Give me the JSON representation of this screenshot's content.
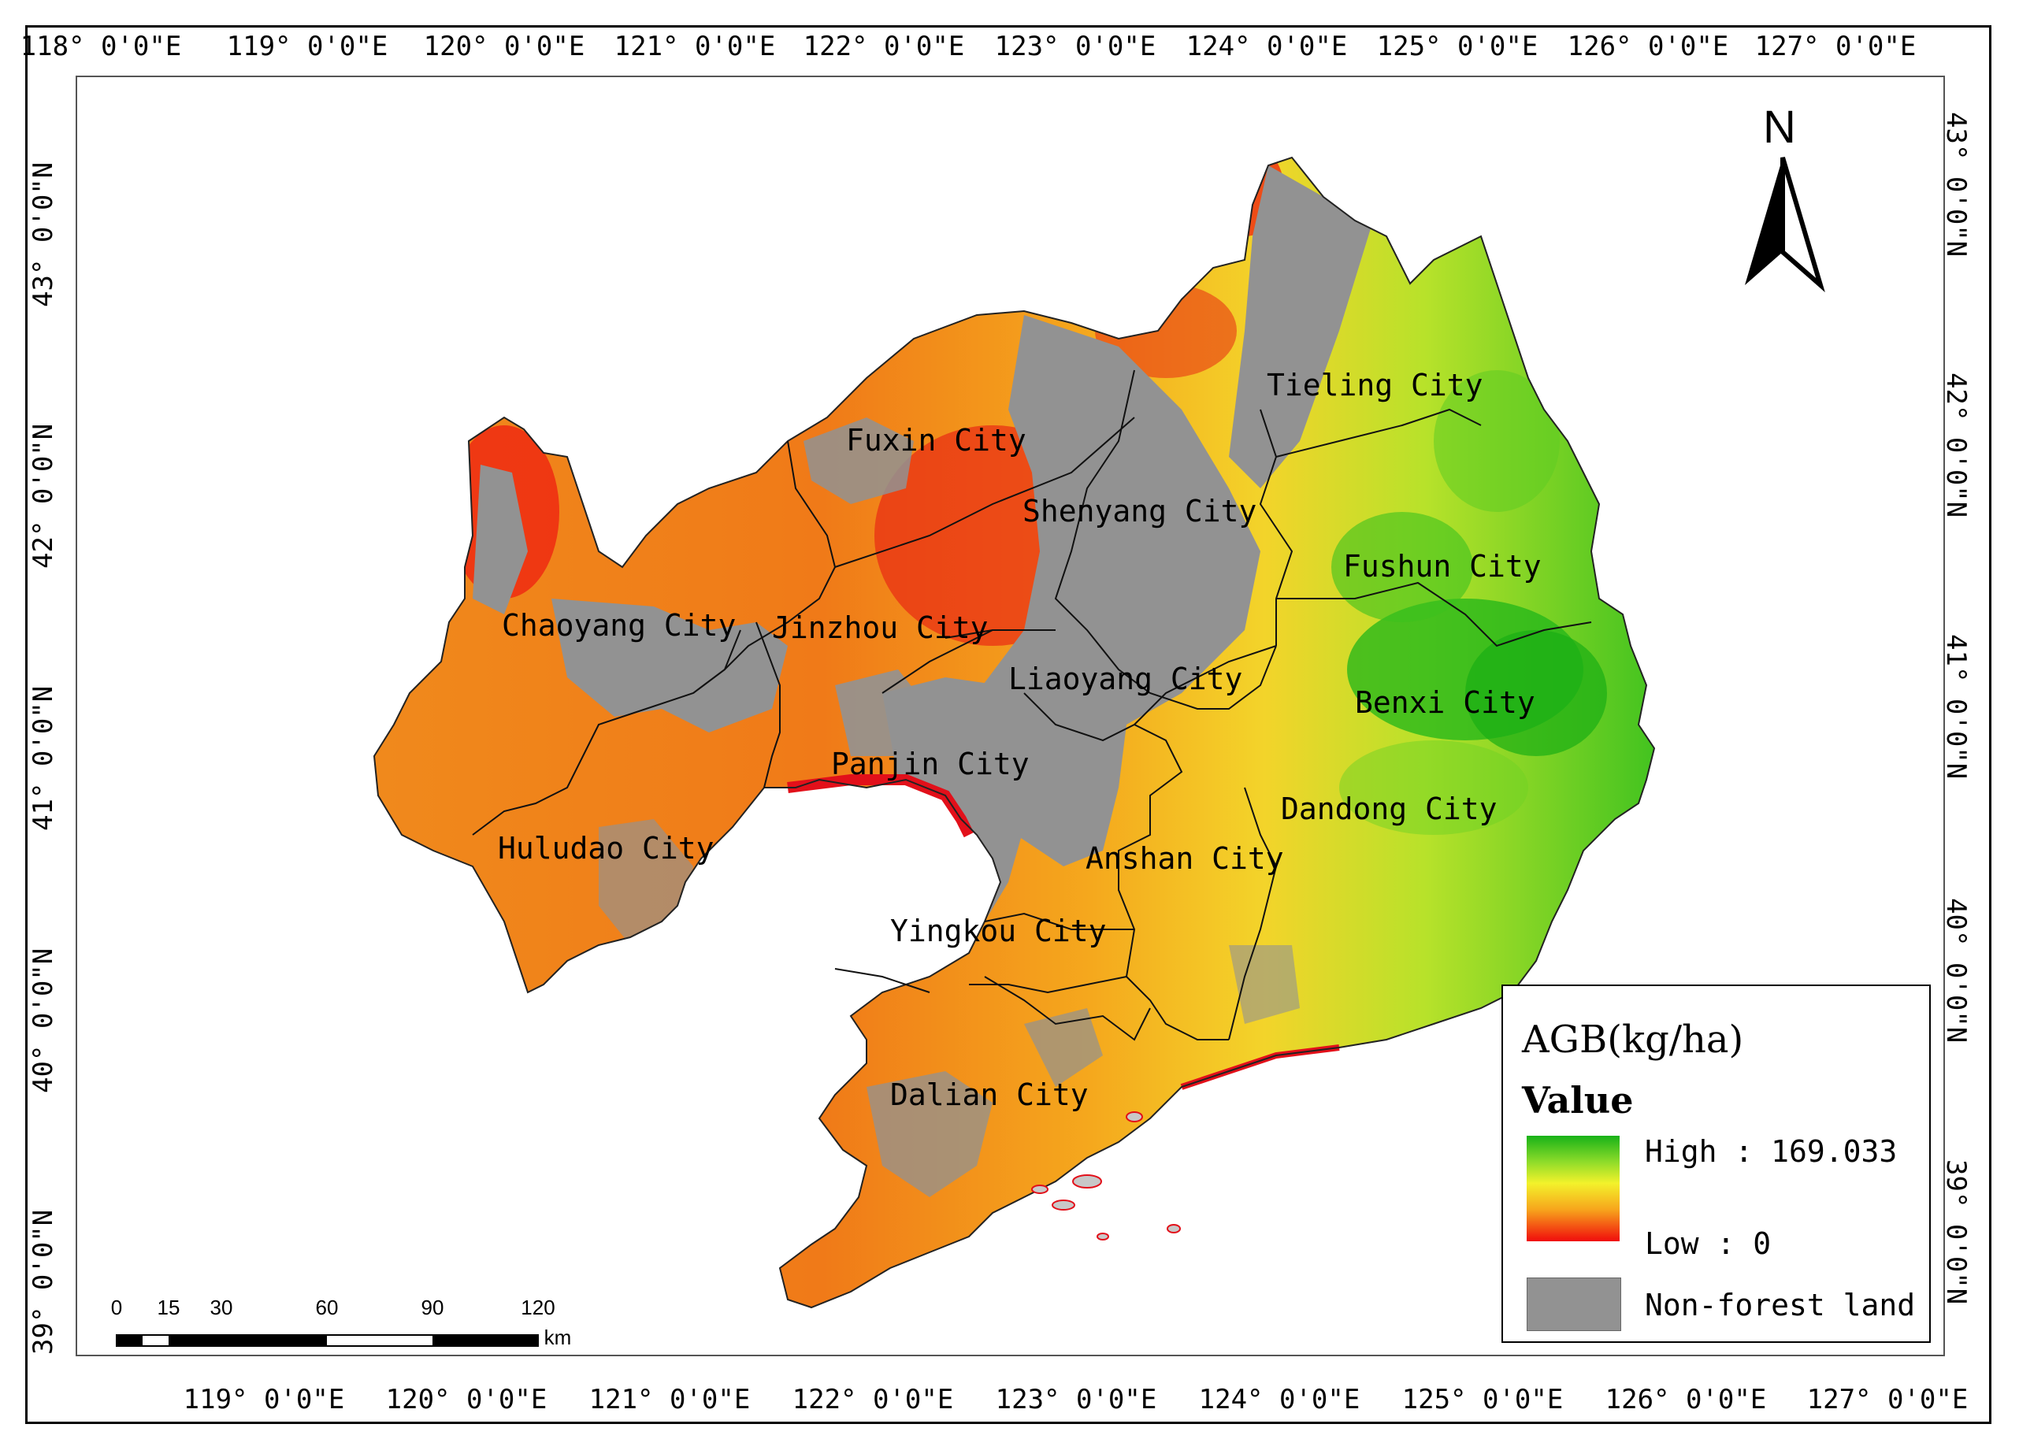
{
  "map": {
    "top_ticks": [
      "118° 0'0\"E",
      "119° 0'0\"E",
      "120° 0'0\"E",
      "121° 0'0\"E",
      "122° 0'0\"E",
      "123° 0'0\"E",
      "124° 0'0\"E",
      "125° 0'0\"E",
      "126° 0'0\"E",
      "127° 0'0\"E"
    ],
    "bottom_ticks": [
      "119° 0'0\"E",
      "120° 0'0\"E",
      "121° 0'0\"E",
      "122° 0'0\"E",
      "123° 0'0\"E",
      "124° 0'0\"E",
      "125° 0'0\"E",
      "126° 0'0\"E",
      "127° 0'0\"E"
    ],
    "left_ticks": [
      "43° 0'0\"N",
      "42° 0'0\"N",
      "41° 0'0\"N",
      "40° 0'0\"N",
      "39° 0'0\"N"
    ],
    "right_ticks": [
      "43° 0'0\"N",
      "42° 0'0\"N",
      "41° 0'0\"N",
      "40° 0'0\"N",
      "39° 0'0\"N"
    ],
    "cities": [
      "Tieling City",
      "Fuxin City",
      "Shenyang City",
      "Fushun City",
      "Chaoyang City",
      "Jinzhou City",
      "Liaoyang City",
      "Benxi City",
      "Panjin City",
      "Dandong City",
      "Huludao City",
      "Anshan City",
      "Yingkou City",
      "Dalian City"
    ],
    "north_label": "N",
    "colors": {
      "non_forest": "#929292",
      "low": "#f00c0c",
      "mid_low": "#f7a51c",
      "mid": "#f3f22b",
      "high": "#18b218"
    }
  },
  "legend": {
    "title": "AGB(kg/ha)",
    "subtitle": "Value",
    "high": "High : 169.033",
    "low": "Low : 0",
    "non_forest": "Non-forest land"
  },
  "scalebar": {
    "labels": [
      "0",
      "15",
      "30",
      "60",
      "90",
      "120"
    ],
    "unit": "km"
  }
}
